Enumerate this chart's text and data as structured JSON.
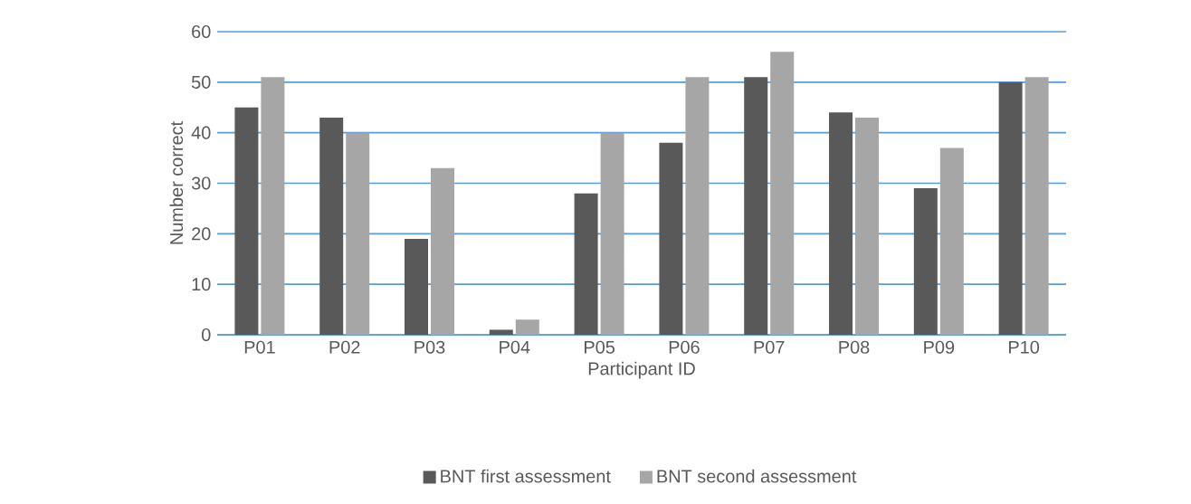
{
  "chart_data": {
    "type": "bar",
    "xlabel": "Participant ID",
    "ylabel": "Number correct",
    "categories": [
      "P01",
      "P02",
      "P03",
      "P04",
      "P05",
      "P06",
      "P07",
      "P08",
      "P09",
      "P10"
    ],
    "series": [
      {
        "name": "BNT first assessment",
        "color": "#595959",
        "values": [
          45,
          43,
          19,
          1,
          28,
          38,
          51,
          44,
          29,
          50
        ]
      },
      {
        "name": "BNT second assessment",
        "color": "#a6a6a6",
        "values": [
          51,
          40,
          33,
          3,
          40,
          51,
          56,
          43,
          37,
          51
        ]
      }
    ],
    "ylim": [
      0,
      60
    ],
    "yticks": [
      0,
      10,
      20,
      30,
      40,
      50,
      60
    ],
    "grid": "y",
    "legend": "bottom"
  }
}
